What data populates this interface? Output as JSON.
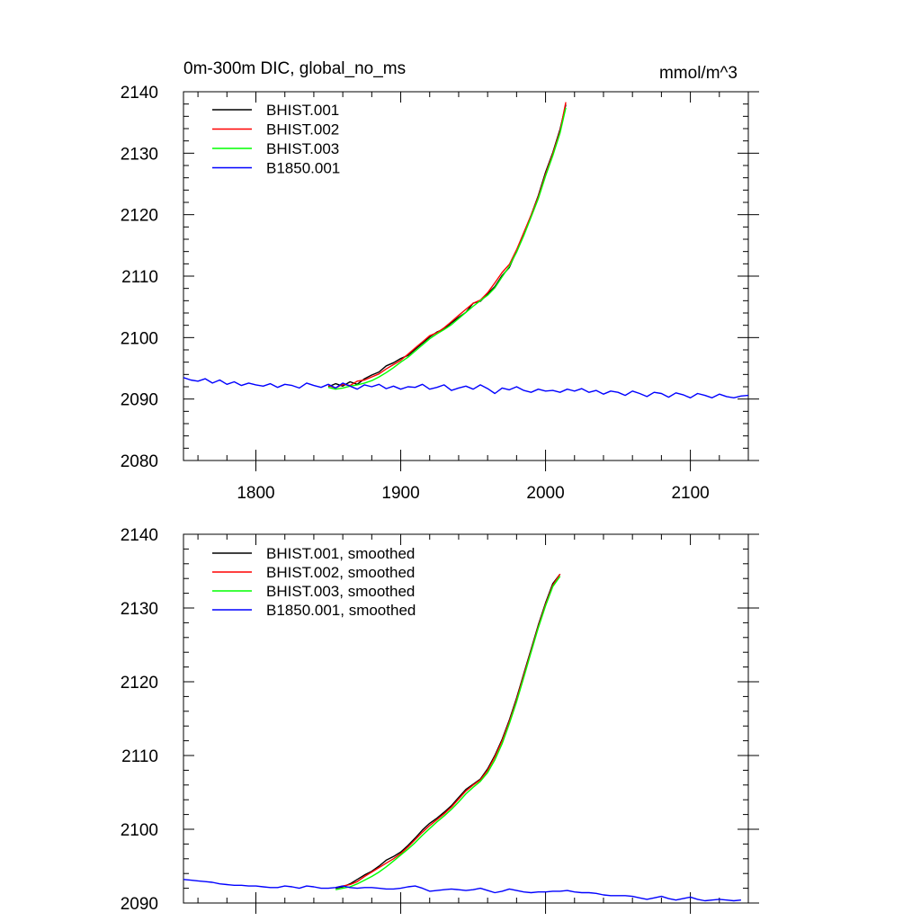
{
  "chart_data": [
    {
      "type": "line",
      "title": "0m-300m DIC, global_no_ms",
      "units": "mmol/m^3",
      "xlim": [
        1750,
        2140
      ],
      "ylim": [
        2080,
        2140
      ],
      "x_ticks": [
        1800,
        1900,
        2000,
        2100
      ],
      "y_ticks": [
        2080,
        2090,
        2100,
        2110,
        2120,
        2130,
        2140
      ],
      "show_x_tick_labels": true,
      "legend_position": "top-left",
      "grid": false,
      "series": [
        {
          "name": "BHIST.001",
          "color": "#000000",
          "x": [
            1850,
            1855,
            1860,
            1865,
            1870,
            1875,
            1880,
            1885,
            1890,
            1895,
            1900,
            1905,
            1910,
            1915,
            1920,
            1925,
            1930,
            1935,
            1940,
            1945,
            1950,
            1955,
            1960,
            1965,
            1970,
            1975,
            1980,
            1985,
            1990,
            1995,
            2000,
            2005,
            2010,
            2014
          ],
          "y": [
            2092.0,
            2092.5,
            2092.1,
            2092.8,
            2092.4,
            2093.3,
            2093.9,
            2094.4,
            2095.4,
            2095.9,
            2096.6,
            2097.1,
            2098.1,
            2099.1,
            2100.1,
            2100.9,
            2101.4,
            2102.4,
            2103.3,
            2104.1,
            2105.6,
            2105.9,
            2107.1,
            2108.3,
            2110.1,
            2111.4,
            2114.1,
            2116.9,
            2119.9,
            2123.1,
            2126.9,
            2130.1,
            2133.9,
            2137.9
          ]
        },
        {
          "name": "BHIST.002",
          "color": "#ff0000",
          "x": [
            1850,
            1855,
            1860,
            1865,
            1870,
            1875,
            1880,
            1885,
            1890,
            1895,
            1900,
            1905,
            1910,
            1915,
            1920,
            1925,
            1930,
            1935,
            1940,
            1945,
            1950,
            1955,
            1960,
            1965,
            1970,
            1975,
            1980,
            1985,
            1990,
            1995,
            2000,
            2005,
            2010,
            2014
          ],
          "y": [
            2092.2,
            2091.8,
            2092.4,
            2092.2,
            2092.9,
            2093.1,
            2093.6,
            2094.1,
            2094.9,
            2095.6,
            2096.3,
            2097.3,
            2098.3,
            2099.3,
            2100.3,
            2100.8,
            2101.6,
            2102.6,
            2103.6,
            2104.6,
            2105.6,
            2106.1,
            2107.3,
            2108.9,
            2110.6,
            2111.9,
            2114.3,
            2117.1,
            2119.9,
            2122.9,
            2126.6,
            2129.9,
            2133.6,
            2138.3
          ]
        },
        {
          "name": "BHIST.003",
          "color": "#00ff00",
          "x": [
            1850,
            1855,
            1860,
            1865,
            1870,
            1875,
            1880,
            1885,
            1890,
            1895,
            1900,
            1905,
            1910,
            1915,
            1920,
            1925,
            1930,
            1935,
            1940,
            1945,
            1950,
            1955,
            1960,
            1965,
            1970,
            1975,
            1980,
            1985,
            1990,
            1995,
            2000,
            2005,
            2010,
            2014
          ],
          "y": [
            2091.9,
            2091.6,
            2091.8,
            2092.1,
            2092.3,
            2092.6,
            2093.0,
            2093.6,
            2094.3,
            2095.1,
            2096.0,
            2096.8,
            2097.8,
            2098.8,
            2099.8,
            2100.6,
            2101.3,
            2102.1,
            2103.1,
            2104.1,
            2105.1,
            2106.0,
            2106.9,
            2108.1,
            2109.9,
            2111.6,
            2113.9,
            2116.6,
            2119.6,
            2122.6,
            2126.3,
            2129.6,
            2133.3,
            2137.4
          ]
        },
        {
          "name": "B1850.001",
          "color": "#0000ff",
          "x": [
            1750,
            1755,
            1760,
            1765,
            1770,
            1775,
            1780,
            1785,
            1790,
            1795,
            1800,
            1805,
            1810,
            1815,
            1820,
            1825,
            1830,
            1835,
            1840,
            1845,
            1850,
            1855,
            1860,
            1865,
            1870,
            1875,
            1880,
            1885,
            1890,
            1895,
            1900,
            1905,
            1910,
            1915,
            1920,
            1925,
            1930,
            1935,
            1940,
            1945,
            1950,
            1955,
            1960,
            1965,
            1970,
            1975,
            1980,
            1985,
            1990,
            1995,
            2000,
            2005,
            2010,
            2015,
            2020,
            2025,
            2030,
            2035,
            2040,
            2045,
            2050,
            2055,
            2060,
            2065,
            2070,
            2075,
            2080,
            2085,
            2090,
            2095,
            2100,
            2105,
            2110,
            2115,
            2120,
            2125,
            2130,
            2135,
            2140
          ],
          "y": [
            2093.5,
            2093.1,
            2092.9,
            2093.3,
            2092.6,
            2093.1,
            2092.4,
            2092.8,
            2092.2,
            2092.6,
            2092.3,
            2092.1,
            2092.5,
            2091.9,
            2092.4,
            2092.2,
            2091.8,
            2092.6,
            2092.2,
            2091.9,
            2092.4,
            2091.8,
            2092.6,
            2092.1,
            2091.6,
            2092.3,
            2092.0,
            2092.4,
            2091.7,
            2092.1,
            2091.6,
            2092.0,
            2091.9,
            2092.4,
            2091.6,
            2091.9,
            2092.3,
            2091.4,
            2091.8,
            2092.1,
            2091.6,
            2092.3,
            2091.7,
            2090.9,
            2091.8,
            2091.5,
            2092.0,
            2091.4,
            2091.1,
            2091.6,
            2091.3,
            2091.4,
            2091.1,
            2091.6,
            2091.3,
            2091.7,
            2091.1,
            2091.4,
            2090.8,
            2091.3,
            2091.1,
            2090.6,
            2091.3,
            2090.9,
            2090.4,
            2091.1,
            2090.9,
            2090.3,
            2091.0,
            2090.7,
            2090.2,
            2090.9,
            2090.6,
            2090.2,
            2090.8,
            2090.4,
            2090.2,
            2090.5,
            2090.6
          ]
        }
      ]
    },
    {
      "type": "line",
      "xlim": [
        1750,
        2140
      ],
      "ylim": [
        2090,
        2140
      ],
      "x_ticks": [
        1800,
        1900,
        2000,
        2100
      ],
      "y_ticks": [
        2090,
        2100,
        2110,
        2120,
        2130,
        2140
      ],
      "show_x_tick_labels": false,
      "legend_position": "top-left",
      "grid": false,
      "series": [
        {
          "name": "BHIST.001, smoothed",
          "color": "#000000",
          "x": [
            1855,
            1860,
            1865,
            1870,
            1875,
            1880,
            1885,
            1890,
            1895,
            1900,
            1905,
            1910,
            1915,
            1920,
            1925,
            1930,
            1935,
            1940,
            1945,
            1950,
            1955,
            1960,
            1965,
            1970,
            1975,
            1980,
            1985,
            1990,
            1995,
            2000,
            2005,
            2010
          ],
          "y": [
            2092.0,
            2092.2,
            2092.6,
            2093.2,
            2093.8,
            2094.3,
            2095.0,
            2095.8,
            2096.3,
            2096.9,
            2097.8,
            2098.8,
            2099.9,
            2100.8,
            2101.5,
            2102.3,
            2103.2,
            2104.3,
            2105.4,
            2106.1,
            2106.8,
            2108.2,
            2110.0,
            2112.2,
            2114.8,
            2117.8,
            2121.1,
            2124.4,
            2127.7,
            2130.7,
            2133.3,
            2134.6
          ]
        },
        {
          "name": "BHIST.002, smoothed",
          "color": "#ff0000",
          "x": [
            1855,
            1860,
            1865,
            1870,
            1875,
            1880,
            1885,
            1890,
            1895,
            1900,
            1905,
            1910,
            1915,
            1920,
            1925,
            1930,
            1935,
            1940,
            1945,
            1950,
            1955,
            1960,
            1965,
            1970,
            1975,
            1980,
            1985,
            1990,
            1995,
            2000,
            2005,
            2010
          ],
          "y": [
            2092.1,
            2092.3,
            2092.5,
            2092.9,
            2093.6,
            2094.2,
            2094.8,
            2095.4,
            2096.0,
            2096.7,
            2097.6,
            2098.6,
            2099.6,
            2100.5,
            2101.3,
            2102.1,
            2103.0,
            2104.1,
            2105.2,
            2106.0,
            2106.7,
            2108.0,
            2109.8,
            2112.0,
            2114.6,
            2117.6,
            2120.9,
            2124.2,
            2127.5,
            2130.5,
            2133.1,
            2134.6
          ]
        },
        {
          "name": "BHIST.003, smoothed",
          "color": "#00ff00",
          "x": [
            1855,
            1860,
            1865,
            1870,
            1875,
            1880,
            1885,
            1890,
            1895,
            1900,
            1905,
            1910,
            1915,
            1920,
            1925,
            1930,
            1935,
            1940,
            1945,
            1950,
            1955,
            1960,
            1965,
            1970,
            1975,
            1980,
            1985,
            1990,
            1995,
            2000,
            2005,
            2010
          ],
          "y": [
            2091.8,
            2092.0,
            2092.2,
            2092.6,
            2093.1,
            2093.6,
            2094.2,
            2094.9,
            2095.7,
            2096.5,
            2097.3,
            2098.2,
            2099.2,
            2100.1,
            2101.0,
            2101.8,
            2102.7,
            2103.7,
            2104.8,
            2105.7,
            2106.5,
            2107.7,
            2109.4,
            2111.6,
            2114.3,
            2117.3,
            2120.6,
            2124.0,
            2127.3,
            2130.3,
            2132.9,
            2134.3
          ]
        },
        {
          "name": "B1850.001, smoothed",
          "color": "#0000ff",
          "x": [
            1750,
            1755,
            1760,
            1765,
            1770,
            1775,
            1780,
            1785,
            1790,
            1795,
            1800,
            1805,
            1810,
            1815,
            1820,
            1825,
            1830,
            1835,
            1840,
            1845,
            1850,
            1855,
            1860,
            1865,
            1870,
            1875,
            1880,
            1885,
            1890,
            1895,
            1900,
            1905,
            1910,
            1915,
            1920,
            1925,
            1930,
            1935,
            1940,
            1945,
            1950,
            1955,
            1960,
            1965,
            1970,
            1975,
            1980,
            1985,
            1990,
            1995,
            2000,
            2005,
            2010,
            2015,
            2020,
            2025,
            2030,
            2035,
            2040,
            2045,
            2050,
            2055,
            2060,
            2065,
            2070,
            2075,
            2080,
            2085,
            2090,
            2095,
            2100,
            2105,
            2110,
            2115,
            2120,
            2125,
            2130,
            2135
          ],
          "y": [
            2093.2,
            2093.1,
            2093.0,
            2092.9,
            2092.8,
            2092.6,
            2092.5,
            2092.4,
            2092.4,
            2092.3,
            2092.3,
            2092.2,
            2092.1,
            2092.1,
            2092.3,
            2092.2,
            2092.0,
            2092.3,
            2092.2,
            2092.0,
            2092.0,
            2092.1,
            2092.3,
            2092.1,
            2092.0,
            2092.1,
            2092.1,
            2092.0,
            2091.9,
            2091.9,
            2092.0,
            2092.2,
            2092.3,
            2092.0,
            2091.6,
            2091.7,
            2091.8,
            2091.9,
            2091.8,
            2091.7,
            2091.8,
            2092.0,
            2091.7,
            2091.4,
            2091.6,
            2091.9,
            2091.7,
            2091.5,
            2091.4,
            2091.5,
            2091.5,
            2091.6,
            2091.6,
            2091.7,
            2091.5,
            2091.4,
            2091.4,
            2091.3,
            2091.1,
            2091.0,
            2091.0,
            2091.0,
            2090.9,
            2090.7,
            2090.5,
            2090.7,
            2090.9,
            2090.6,
            2090.4,
            2090.6,
            2090.8,
            2090.5,
            2090.3,
            2090.4,
            2090.5,
            2090.4,
            2090.3,
            2090.4
          ]
        }
      ]
    }
  ]
}
